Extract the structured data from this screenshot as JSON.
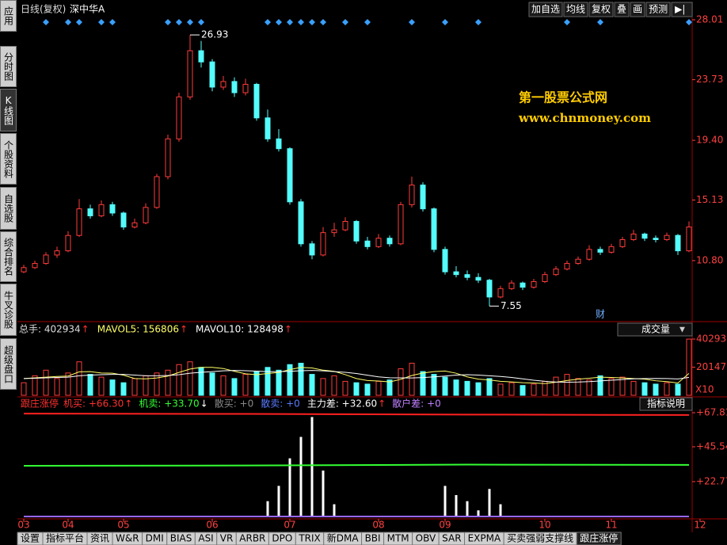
{
  "toolbar": {
    "period": "日线(复权)",
    "stock": "深中华A",
    "buttons": [
      "加自选",
      "均线",
      "复权",
      "叠",
      "画",
      "预测"
    ]
  },
  "sidebar": {
    "tabs": [
      "应用",
      "分时图",
      "K线图",
      "个股资料",
      "自选股",
      "综合排名",
      "牛叉诊股",
      "超级盘口"
    ],
    "selected": 2
  },
  "watermark": {
    "title": "第一股票公式网",
    "url": "www.chnmoney.com"
  },
  "price_panel": {
    "ylim": [
      6.44,
      28.18
    ],
    "yticks": [
      28.01,
      23.73,
      {
        "value": 19.4,
        "label": "19.40"
      },
      15.13,
      {
        "value": 10.8,
        "label": "10.80"
      }
    ],
    "up_color": "#ff3c3c",
    "down_color": "#54fcfc",
    "ohlc": [
      [
        10.0,
        10.5,
        9.9,
        10.3
      ],
      [
        10.3,
        10.8,
        10.2,
        10.6
      ],
      [
        10.6,
        11.4,
        10.5,
        11.2
      ],
      [
        11.2,
        11.8,
        11.0,
        11.5
      ],
      [
        11.5,
        12.9,
        11.4,
        12.6
      ],
      [
        12.6,
        15.2,
        12.5,
        14.5
      ],
      [
        14.5,
        14.8,
        13.8,
        14.0
      ],
      [
        14.0,
        15.1,
        13.9,
        14.8
      ],
      [
        14.8,
        15.0,
        14.0,
        14.2
      ],
      [
        14.2,
        14.3,
        13.0,
        13.2
      ],
      [
        13.2,
        13.8,
        13.1,
        13.5
      ],
      [
        13.5,
        14.9,
        13.4,
        14.6
      ],
      [
        14.6,
        17.0,
        14.5,
        16.8
      ],
      [
        16.8,
        19.8,
        16.6,
        19.5
      ],
      [
        19.5,
        22.8,
        19.3,
        22.5
      ],
      [
        22.5,
        26.93,
        22.3,
        25.8
      ],
      [
        25.8,
        26.5,
        24.6,
        25.0
      ],
      [
        25.0,
        25.2,
        22.9,
        23.2
      ],
      [
        23.2,
        24.0,
        23.0,
        23.6
      ],
      [
        23.6,
        23.9,
        22.5,
        22.8
      ],
      [
        22.8,
        23.8,
        22.6,
        23.4
      ],
      [
        23.4,
        23.5,
        20.8,
        21.0
      ],
      [
        21.0,
        21.6,
        19.3,
        19.5
      ],
      [
        19.5,
        20.2,
        18.6,
        18.8
      ],
      [
        18.8,
        18.9,
        14.8,
        15.0
      ],
      [
        15.0,
        15.2,
        11.8,
        12.0
      ],
      [
        12.0,
        12.2,
        10.9,
        11.2
      ],
      [
        11.2,
        13.2,
        11.1,
        12.8
      ],
      [
        12.8,
        13.5,
        12.5,
        13.0
      ],
      [
        13.0,
        13.9,
        12.9,
        13.6
      ],
      [
        13.6,
        13.7,
        12.0,
        12.2
      ],
      [
        12.2,
        12.5,
        11.6,
        11.8
      ],
      [
        11.8,
        12.7,
        11.7,
        12.4
      ],
      [
        12.4,
        12.6,
        11.8,
        12.0
      ],
      [
        12.0,
        15.0,
        11.9,
        14.8
      ],
      [
        14.8,
        16.8,
        14.6,
        16.2
      ],
      [
        16.2,
        16.4,
        14.3,
        14.5
      ],
      [
        14.5,
        14.6,
        11.4,
        11.6
      ],
      [
        11.6,
        11.8,
        9.8,
        10.0
      ],
      [
        10.0,
        10.4,
        9.6,
        9.8
      ],
      [
        9.8,
        10.1,
        9.4,
        9.6
      ],
      [
        9.6,
        9.9,
        9.2,
        9.4
      ],
      [
        9.4,
        9.5,
        7.55,
        8.2
      ],
      [
        8.2,
        9.0,
        8.1,
        8.8
      ],
      [
        8.8,
        9.4,
        8.7,
        9.2
      ],
      [
        9.2,
        9.3,
        8.7,
        8.9
      ],
      [
        8.9,
        9.5,
        8.8,
        9.3
      ],
      [
        9.3,
        10.0,
        9.2,
        9.8
      ],
      [
        9.8,
        10.4,
        9.7,
        10.2
      ],
      [
        10.2,
        10.8,
        10.1,
        10.6
      ],
      [
        10.6,
        11.1,
        10.5,
        10.9
      ],
      [
        10.9,
        11.9,
        10.8,
        11.6
      ],
      [
        11.6,
        11.8,
        11.2,
        11.4
      ],
      [
        11.4,
        12.0,
        11.3,
        11.8
      ],
      [
        11.8,
        12.5,
        11.7,
        12.3
      ],
      [
        12.3,
        13.0,
        12.2,
        12.7
      ],
      [
        12.7,
        12.8,
        12.2,
        12.4
      ],
      [
        12.4,
        12.6,
        12.1,
        12.3
      ],
      [
        12.3,
        12.8,
        12.2,
        12.6
      ],
      [
        12.6,
        12.7,
        11.2,
        11.5
      ],
      [
        11.5,
        13.6,
        11.4,
        13.2
      ]
    ],
    "signals": [
      2,
      4,
      5,
      7,
      8,
      13,
      14,
      15,
      16,
      22,
      23,
      24,
      25,
      26,
      27,
      29,
      31,
      35,
      38,
      41,
      49,
      52,
      60
    ],
    "signal_color": "#3aa0ff",
    "annotations": [
      {
        "text": "26.93",
        "index": 15,
        "value": 26.93
      },
      {
        "text": "7.55",
        "index": 42,
        "value": 7.55
      }
    ],
    "marker": {
      "text": "财",
      "index": 52
    }
  },
  "volume_panel": {
    "header": [
      {
        "text": "总手: 402934",
        "arrow": "↑",
        "color": "#dddddd"
      },
      {
        "text": "MAVOL5: 156806",
        "arrow": "↑",
        "color": "#ffff66"
      },
      {
        "text": "MAVOL10: 128498",
        "arrow": "↑",
        "color": "#ffffff"
      }
    ],
    "arrow_color": "#ff3030",
    "selector": "成交量",
    "ylim": [
      0,
      42595
    ],
    "yticks": [
      40293,
      20147
    ],
    "multiplier": "X10",
    "values": [
      9000,
      14000,
      18000,
      12000,
      16000,
      24000,
      15000,
      13000,
      11000,
      9000,
      12000,
      14000,
      16000,
      18000,
      22000,
      24000,
      20000,
      16000,
      14000,
      12000,
      15000,
      17000,
      20000,
      18000,
      22000,
      23000,
      15000,
      12000,
      14000,
      10000,
      9000,
      8000,
      10000,
      11000,
      19000,
      23000,
      17000,
      15000,
      13000,
      11000,
      10000,
      9000,
      12000,
      8000,
      9000,
      7000,
      8000,
      10000,
      13000,
      15000,
      12000,
      11000,
      14000,
      12000,
      13000,
      10000,
      9000,
      8000,
      9000,
      8000,
      40293
    ],
    "series": [
      {
        "color": "#ffff66",
        "values": [
          12000,
          12500,
          13000,
          13500,
          13800,
          16800,
          17000,
          16000,
          15800,
          14400,
          12000,
          11800,
          12400,
          13800,
          16400,
          18800,
          20000,
          20000,
          19200,
          17200,
          15400,
          14800,
          15600,
          16400,
          18400,
          20000,
          19600,
          18000,
          17200,
          14800,
          12000,
          10600,
          10200,
          9600,
          11400,
          14200,
          16000,
          17000,
          17400,
          15800,
          13200,
          11600,
          11000,
          10000,
          9600,
          9000,
          8800,
          8400,
          9400,
          10600,
          11600,
          12200,
          13000,
          12800,
          12400,
          12000,
          11600,
          10400,
          9800,
          8800,
          15681
        ]
      },
      {
        "color": "#ffffff",
        "values": [
          12000,
          12200,
          12500,
          12800,
          13000,
          14000,
          14500,
          14800,
          15000,
          15000,
          14500,
          14000,
          14000,
          14200,
          14800,
          15800,
          16500,
          17000,
          17500,
          17800,
          17600,
          17300,
          17000,
          17000,
          17200,
          17600,
          17800,
          17500,
          17000,
          16500,
          15600,
          14400,
          13200,
          12600,
          12500,
          12400,
          12700,
          13200,
          13800,
          14500,
          14800,
          14500,
          14000,
          13500,
          12800,
          11800,
          10800,
          10000,
          9500,
          9400,
          9500,
          9800,
          10300,
          10800,
          11300,
          11800,
          12000,
          12100,
          12000,
          11700,
          12850
        ]
      }
    ]
  },
  "indicator_panel": {
    "name": "跟庄涨停",
    "help": "指标说明",
    "header": [
      {
        "text": "机买: +66.30",
        "arrow": "↑",
        "arrow_color": "#ff3030",
        "color": "#ff3030"
      },
      {
        "text": "机卖: +33.70",
        "arrow": "↓",
        "arrow_color": "#ffffff",
        "color": "#33ff33"
      },
      {
        "text": "散买: +0",
        "color": "#888888"
      },
      {
        "text": "散卖: +0",
        "color": "#5a7bff"
      },
      {
        "text": "主力差: +32.60",
        "arrow": "↑",
        "arrow_color": "#ff3030",
        "color": "#ffffff"
      },
      {
        "text": "散户差: +0",
        "color": "#c080ff"
      }
    ],
    "ylim": [
      -1.55,
      69.36
    ],
    "yticks": [
      {
        "value": 67.81,
        "label": "+67.81"
      },
      {
        "value": 45.54,
        "label": "+45.54"
      },
      {
        "value": 22.77,
        "label": "+22.77"
      }
    ],
    "bar_color": "#ffffff",
    "bars": [
      0,
      0,
      0,
      0,
      0,
      0,
      0,
      0,
      0,
      0,
      0,
      0,
      0,
      0,
      0,
      0,
      0,
      0,
      0,
      0,
      0,
      0,
      10,
      20,
      38,
      52,
      65,
      30,
      8,
      0,
      0,
      0,
      0,
      0,
      0,
      0,
      0,
      0,
      20,
      14,
      10,
      4,
      18,
      8,
      0,
      0,
      0,
      0,
      0,
      0,
      0,
      0,
      0,
      0,
      0,
      0,
      0,
      0,
      0,
      0,
      0
    ],
    "lines": [
      {
        "color": "#ff2020",
        "x": [
          0,
          20,
          40,
          60
        ],
        "values": [
          67.2,
          67.0,
          66.6,
          66.3
        ]
      },
      {
        "color": "#33ff33",
        "x": [
          0,
          20,
          40,
          60
        ],
        "values": [
          33.1,
          33.3,
          33.9,
          33.7
        ]
      },
      {
        "color": "#9966ff",
        "x": [
          0,
          60
        ],
        "values": [
          0,
          0
        ]
      }
    ]
  },
  "time_axis": {
    "months": [
      {
        "label": "03",
        "index": 0
      },
      {
        "label": "04",
        "index": 4
      },
      {
        "label": "05",
        "index": 9
      },
      {
        "label": "06",
        "index": 17
      },
      {
        "label": "07",
        "index": 24
      },
      {
        "label": "08",
        "index": 32
      },
      {
        "label": "09",
        "index": 38
      },
      {
        "label": "10",
        "index": 47
      },
      {
        "label": "11",
        "index": 53
      },
      {
        "label": "12",
        "index": 61
      }
    ]
  },
  "bottom_tabs": {
    "tabs": [
      "设置",
      "指标平台",
      "资讯",
      "W&R",
      "DMI",
      "BIAS",
      "ASI",
      "VR",
      "ARBR",
      "DPO",
      "TRIX",
      "新DMA",
      "BBI",
      "MTM",
      "OBV",
      "SAR",
      "EXPMA",
      "买卖强弱支撑线",
      "跟庄涨停"
    ],
    "selected": 18
  }
}
